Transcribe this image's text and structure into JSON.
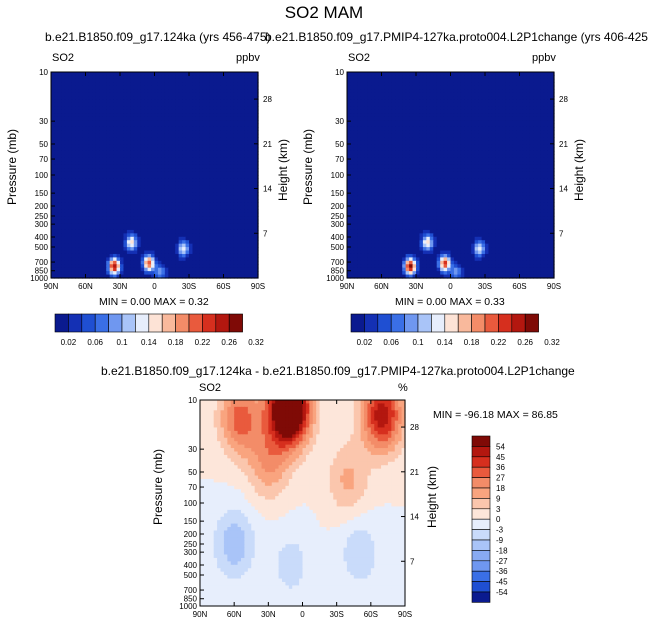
{
  "page_title": "SO2 MAM",
  "panels": {
    "left": {
      "title": "b.e21.B1850.f09_g17.124ka (yrs 456-475)",
      "var": "SO2",
      "units": "ppbv",
      "min_max": "MIN =  0.00  MAX =  0.32"
    },
    "right": {
      "title": "b.e21.B1850.f09_g17.PMIP4-127ka.proto004.L2P1change (yrs 406-425)",
      "var": "SO2",
      "units": "ppbv",
      "min_max": "MIN =  0.00  MAX =  0.33"
    },
    "diff": {
      "title": "b.e21.B1850.f09_g17.124ka - b.e21.B1850.f09_g17.PMIP4-127ka.proto004.L2P1change",
      "var": "SO2",
      "units": "%",
      "min_max": "MIN = -96.18  MAX =  86.85"
    }
  },
  "axes": {
    "ylabel": "Pressure (mb)",
    "y2label": "Height (km)"
  },
  "chart_data": [
    {
      "type": "heatmap",
      "title": "b.e21.B1850.f09_g17.124ka (yrs 456-475)",
      "xlabel": "",
      "ylabel": "Pressure (mb)",
      "x_ticks": [
        "90N",
        "60N",
        "30N",
        "0",
        "30S",
        "60S",
        "90S"
      ],
      "y_ticks": [
        10,
        30,
        50,
        70,
        100,
        150,
        200,
        250,
        300,
        400,
        500,
        700,
        850,
        1000
      ],
      "y_log": true,
      "y_reversed": false,
      "y2_ticks": [
        7,
        14,
        21,
        28
      ],
      "y2label": "Height (km)",
      "units": "ppbv",
      "min": 0.0,
      "max": 0.32,
      "colorbar_labels": [
        "0.02",
        "0.06",
        "0.1",
        "0.14",
        "0.18",
        "0.22",
        "0.26",
        "0.32"
      ],
      "colorbar_colors": [
        "#0a1a8f",
        "#1430b4",
        "#1f4fd2",
        "#3a6fe6",
        "#6f97f0",
        "#a9c4f8",
        "#e7eefc",
        "#fde3d6",
        "#f9b99c",
        "#f38c68",
        "#e95a3d",
        "#d62f1e",
        "#b3170f",
        "#7f0a06"
      ],
      "features": [
        {
          "lat": 35,
          "p": 770,
          "v": 0.3
        },
        {
          "lat": 5,
          "p": 720,
          "v": 0.25
        },
        {
          "lat": 20,
          "p": 450,
          "v": 0.18
        },
        {
          "lat": -25,
          "p": 520,
          "v": 0.15
        },
        {
          "lat": -5,
          "p": 880,
          "v": 0.1
        }
      ]
    },
    {
      "type": "heatmap",
      "title": "b.e21.B1850.f09_g17.PMIP4-127ka.proto004.L2P1change (yrs 406-425)",
      "xlabel": "",
      "ylabel": "Pressure (mb)",
      "x_ticks": [
        "90N",
        "60N",
        "30N",
        "0",
        "30S",
        "60S",
        "90S"
      ],
      "y_ticks": [
        10,
        30,
        50,
        70,
        100,
        150,
        200,
        250,
        300,
        400,
        500,
        700,
        850,
        1000
      ],
      "y_log": true,
      "y2_ticks": [
        7,
        14,
        21,
        28
      ],
      "y2label": "Height (km)",
      "units": "ppbv",
      "min": 0.0,
      "max": 0.33,
      "colorbar_labels": [
        "0.02",
        "0.06",
        "0.1",
        "0.14",
        "0.18",
        "0.22",
        "0.26",
        "0.32"
      ],
      "colorbar_colors": [
        "#0a1a8f",
        "#1430b4",
        "#1f4fd2",
        "#3a6fe6",
        "#6f97f0",
        "#a9c4f8",
        "#e7eefc",
        "#fde3d6",
        "#f9b99c",
        "#f38c68",
        "#e95a3d",
        "#d62f1e",
        "#b3170f",
        "#7f0a06"
      ],
      "features": [
        {
          "lat": 35,
          "p": 770,
          "v": 0.31
        },
        {
          "lat": 5,
          "p": 720,
          "v": 0.26
        },
        {
          "lat": 20,
          "p": 450,
          "v": 0.18
        },
        {
          "lat": -25,
          "p": 520,
          "v": 0.15
        },
        {
          "lat": -5,
          "p": 880,
          "v": 0.1
        }
      ]
    },
    {
      "type": "heatmap",
      "title": "b.e21.B1850.f09_g17.124ka - b.e21.B1850.f09_g17.PMIP4-127ka.proto004.L2P1change",
      "xlabel": "",
      "ylabel": "Pressure (mb)",
      "x_ticks": [
        "90N",
        "60N",
        "30N",
        "0",
        "30S",
        "60S",
        "90S"
      ],
      "y_ticks": [
        10,
        30,
        50,
        70,
        100,
        150,
        200,
        250,
        300,
        400,
        500,
        700,
        850,
        1000
      ],
      "y_log": true,
      "y2_ticks": [
        7,
        14,
        21,
        28
      ],
      "y2label": "Height (km)",
      "units": "%",
      "min": -96.18,
      "max": 86.85,
      "colorbar_labels": [
        "54",
        "45",
        "36",
        "27",
        "18",
        "9",
        "3",
        "0",
        "-3",
        "-9",
        "-18",
        "-27",
        "-36",
        "-45",
        "-54"
      ],
      "colorbar_colors": [
        "#7f0a06",
        "#b3170f",
        "#d62f1e",
        "#e95a3d",
        "#f38c68",
        "#f9a47f",
        "#fbc6ad",
        "#fde6da",
        "#e7eefc",
        "#c9dbfa",
        "#a9c4f8",
        "#88aaf2",
        "#6f97f0",
        "#3a6fe6",
        "#1f4fd2",
        "#0a1a8f"
      ],
      "features": [
        {
          "lat": 12,
          "p": 12,
          "v": 80
        },
        {
          "lat": -70,
          "p": 14,
          "v": 45
        },
        {
          "lat": 55,
          "p": 15,
          "v": 30
        },
        {
          "lat": 30,
          "p": 40,
          "v": 20
        },
        {
          "lat": -40,
          "p": 60,
          "v": 15
        },
        {
          "lat": 60,
          "p": 250,
          "v": -18
        },
        {
          "lat": 10,
          "p": 400,
          "v": -10
        },
        {
          "lat": -50,
          "p": 300,
          "v": -12
        }
      ]
    }
  ]
}
